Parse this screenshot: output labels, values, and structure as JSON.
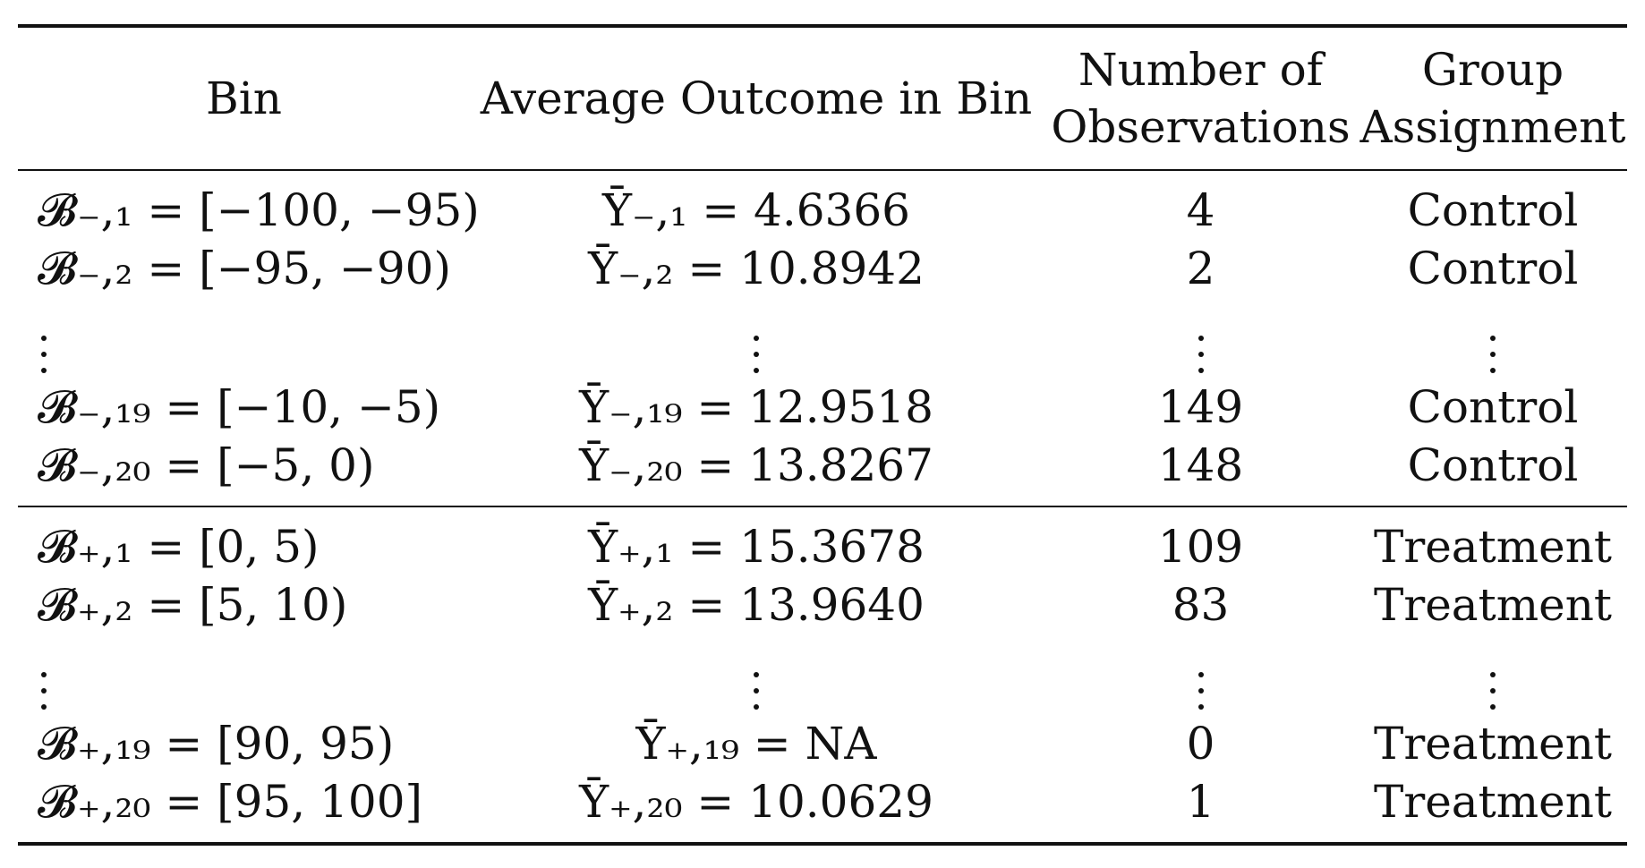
{
  "table": {
    "headers": {
      "bin": "Bin",
      "avg": "Average Outcome in Bin",
      "num_line1": "Number of",
      "num_line2": "Observations",
      "grp_line1": "Group",
      "grp_line2": "Assignment"
    },
    "control_rows_top": [
      {
        "bin": "𝓑₋,₁ = [−100, −95)",
        "avg": "Ȳ₋,₁ = 4.6366",
        "num": "4",
        "grp": "Control"
      },
      {
        "bin": "𝓑₋,₂ = [−95, −90)",
        "avg": "Ȳ₋,₂ = 10.8942",
        "num": "2",
        "grp": "Control"
      }
    ],
    "control_rows_bottom": [
      {
        "bin": "𝓑₋,₁₉ = [−10, −5)",
        "avg": "Ȳ₋,₁₉ = 12.9518",
        "num": "149",
        "grp": "Control"
      },
      {
        "bin": "𝓑₋,₂₀ = [−5, 0)",
        "avg": "Ȳ₋,₂₀ = 13.8267",
        "num": "148",
        "grp": "Control"
      }
    ],
    "treatment_rows_top": [
      {
        "bin": "𝓑₊,₁ = [0, 5)",
        "avg": "Ȳ₊,₁ = 15.3678",
        "num": "109",
        "grp": "Treatment"
      },
      {
        "bin": "𝓑₊,₂ = [5, 10)",
        "avg": "Ȳ₊,₂ = 13.9640",
        "num": "83",
        "grp": "Treatment"
      }
    ],
    "treatment_rows_bottom": [
      {
        "bin": "𝓑₊,₁₉ = [90, 95)",
        "avg": "Ȳ₊,₁₉ = NA",
        "num": "0",
        "grp": "Treatment"
      },
      {
        "bin": "𝓑₊,₂₀ = [95, 100]",
        "avg": "Ȳ₊,₂₀ = 10.0629",
        "num": "1",
        "grp": "Treatment"
      }
    ]
  }
}
